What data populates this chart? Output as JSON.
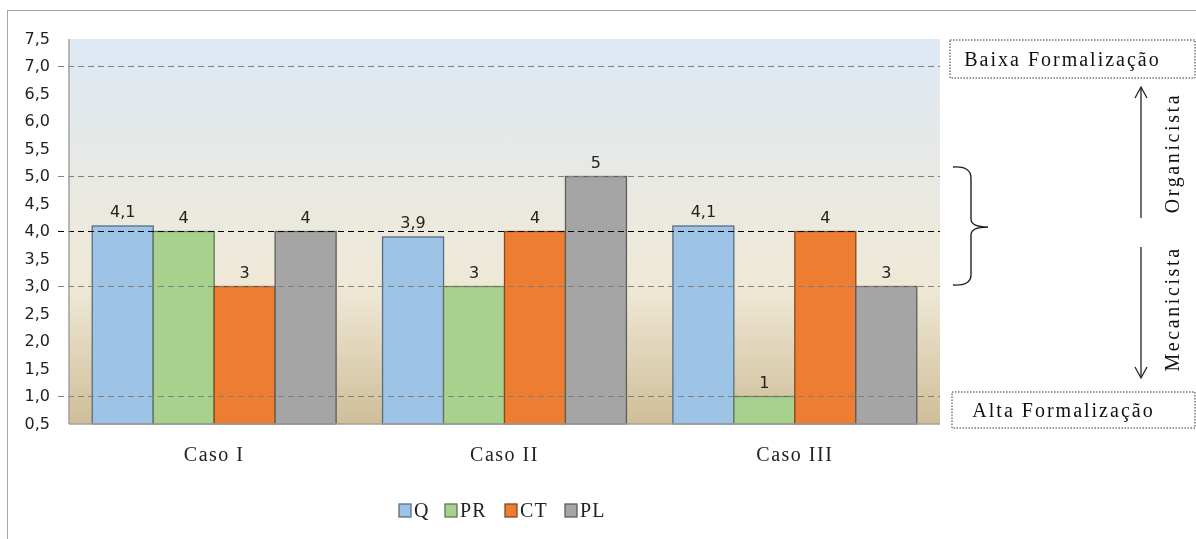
{
  "chart_data": {
    "type": "bar",
    "categories": [
      "Caso I",
      "Caso II",
      "Caso III"
    ],
    "series": [
      {
        "name": "Q",
        "color": "#9dc3e6",
        "values": [
          4.1,
          3.9,
          4.1
        ],
        "value_labels": [
          "4,1",
          "3,9",
          "4,1"
        ]
      },
      {
        "name": "PR",
        "color": "#a9d18e",
        "values": [
          4,
          3,
          1
        ],
        "value_labels": [
          "4",
          "3",
          "1"
        ]
      },
      {
        "name": "CT",
        "color": "#ed7d31",
        "values": [
          3,
          4,
          4
        ],
        "value_labels": [
          "3",
          "4",
          "4"
        ]
      },
      {
        "name": "PL",
        "color": "#a5a5a5",
        "values": [
          4,
          5,
          3
        ],
        "value_labels": [
          "4",
          "5",
          "3"
        ]
      }
    ],
    "ylim": [
      0.5,
      7.5
    ],
    "yticks": [
      {
        "value": 0.5,
        "label": "0,5"
      },
      {
        "value": 1,
        "label": "1,0"
      },
      {
        "value": 1.5,
        "label": "1,5"
      },
      {
        "value": 2,
        "label": "2,0"
      },
      {
        "value": 2.5,
        "label": "2,5"
      },
      {
        "value": 3,
        "label": "3,0"
      },
      {
        "value": 3.5,
        "label": "3,5"
      },
      {
        "value": 4,
        "label": "4,0"
      },
      {
        "value": 4.5,
        "label": "4,5"
      },
      {
        "value": 5,
        "label": "5,0"
      },
      {
        "value": 5.5,
        "label": "5,5"
      },
      {
        "value": 6,
        "label": "6,0"
      },
      {
        "value": 6.5,
        "label": "6,5"
      },
      {
        "value": 7,
        "label": "7,0"
      },
      {
        "value": 7.5,
        "label": "7,5"
      }
    ],
    "grid": false,
    "legend": "bottom",
    "ref_lines": [
      {
        "axis": "y",
        "value": 1,
        "color": "#808080",
        "line_style": "dashed"
      },
      {
        "axis": "y",
        "value": 3,
        "color": "#808080",
        "line_style": "dashed"
      },
      {
        "axis": "y",
        "value": 4,
        "color": "#000000",
        "line_style": "dashed"
      },
      {
        "axis": "y",
        "value": 5,
        "color": "#808080",
        "line_style": "dashed"
      },
      {
        "axis": "y",
        "value": 7,
        "color": "#808080",
        "line_style": "dashed"
      }
    ],
    "annotations": [
      "Baixa Formalização",
      "Alta Formalização",
      "Organicista",
      "Mecanicista"
    ]
  }
}
